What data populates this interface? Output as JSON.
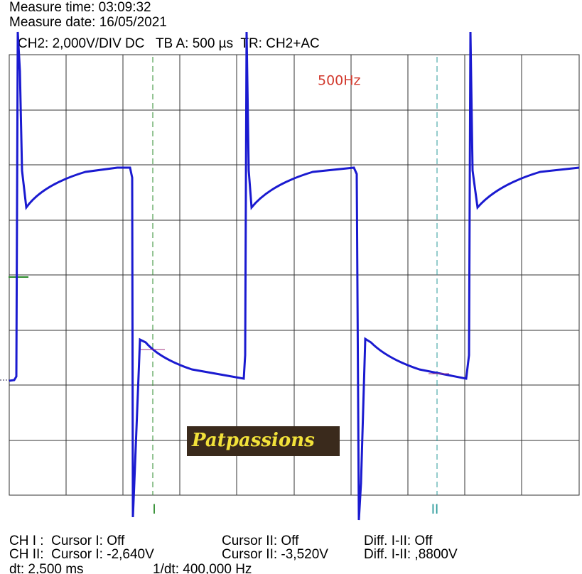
{
  "header": {
    "time": "Measure time: 03:09:32",
    "date": "Measure date: 16/05/2021",
    "settings": "CH2: 2,000V/DIV DC   TB A: 500 µs  TR: CH2+AC"
  },
  "annotation": "500Hz",
  "cursors": [
    "I",
    "II"
  ],
  "logo": "Patpassions",
  "readouts": [
    [
      "CH I :  Cursor I: Off",
      "Cursor II: Off",
      "Diff. I-II: Off"
    ],
    [
      "CH II:  Cursor I: -2,640V",
      "Cursor II: -3,520V",
      "Diff. I-II: ,8800V"
    ],
    [
      "dt: 2,500 ms",
      "1/dt: 400,000 Hz"
    ]
  ]
}
